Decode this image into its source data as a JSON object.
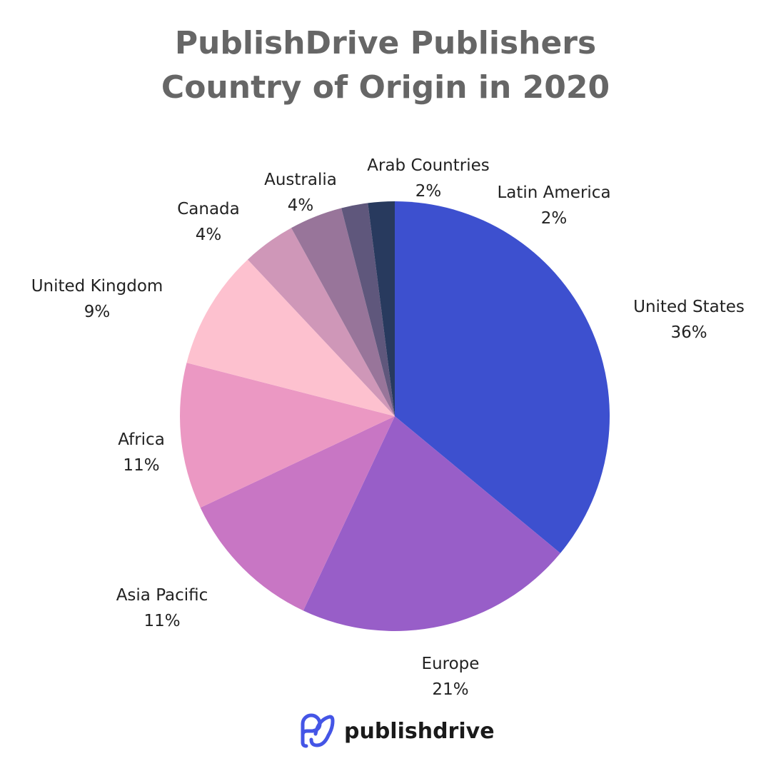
{
  "chart_data": {
    "type": "pie",
    "title_lines": [
      "PublishDrive Publishers",
      "Country of Origin in 2020"
    ],
    "slices": [
      {
        "label": "United States",
        "value": 36,
        "value_label": "36%",
        "color": "#3d50cf"
      },
      {
        "label": "Europe",
        "value": 21,
        "value_label": "21%",
        "color": "#985ec8"
      },
      {
        "label": "Asia Pacific",
        "value": 11,
        "value_label": "11%",
        "color": "#c876c4"
      },
      {
        "label": "Africa",
        "value": 11,
        "value_label": "11%",
        "color": "#eb98c3"
      },
      {
        "label": "United Kingdom",
        "value": 9,
        "value_label": "9%",
        "color": "#fdc1cf"
      },
      {
        "label": "Canada",
        "value": 4,
        "value_label": "4%",
        "color": "#cf97b8"
      },
      {
        "label": "Australia",
        "value": 4,
        "value_label": "4%",
        "color": "#98759a"
      },
      {
        "label": "Arab Countries",
        "value": 2,
        "value_label": "2%",
        "color": "#5f577c"
      },
      {
        "label": "Latin America",
        "value": 2,
        "value_label": "2%",
        "color": "#283a5e"
      }
    ],
    "start": "top",
    "direction": "clockwise",
    "legend": "none"
  },
  "branding": {
    "logo_text": "publishdrive",
    "logo_color": "#4455e6"
  }
}
